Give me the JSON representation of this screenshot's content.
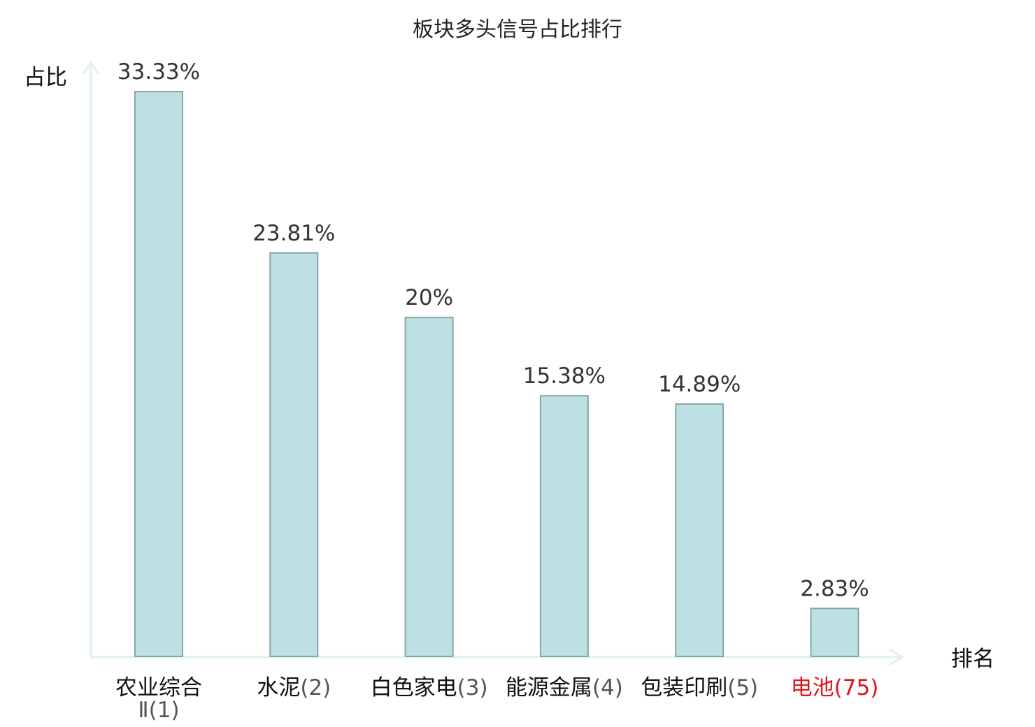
{
  "chart_data": {
    "type": "bar",
    "title": "板块多头信号占比排行",
    "ylabel": "占比",
    "xlabel": "排名",
    "unit": "%",
    "categories": [
      {
        "name": "农业综合",
        "name2": "Ⅱ",
        "rank": "(1)",
        "highlight": false
      },
      {
        "name": "水泥",
        "name2": "",
        "rank": "(2)",
        "highlight": false
      },
      {
        "name": "白色家电",
        "name2": "",
        "rank": "(3)",
        "highlight": false
      },
      {
        "name": "能源金属",
        "name2": "",
        "rank": "(4)",
        "highlight": false
      },
      {
        "name": "包装印刷",
        "name2": "",
        "rank": "(5)",
        "highlight": false
      },
      {
        "name": "电池",
        "name2": "",
        "rank": "(75)",
        "highlight": true
      }
    ],
    "values": [
      33.33,
      23.81,
      20,
      15.38,
      14.89,
      2.83
    ],
    "value_labels": [
      "33.33%",
      "23.81%",
      "20%",
      "15.38%",
      "14.89%",
      "2.83%"
    ],
    "ylim": [
      0,
      33.33
    ],
    "grid": false,
    "legend": "none"
  },
  "colors": {
    "bar_fill": "#bde0e3",
    "bar_stroke": "#8aa5a8",
    "axis": "#dff1ee",
    "highlight": "#e0141e"
  }
}
